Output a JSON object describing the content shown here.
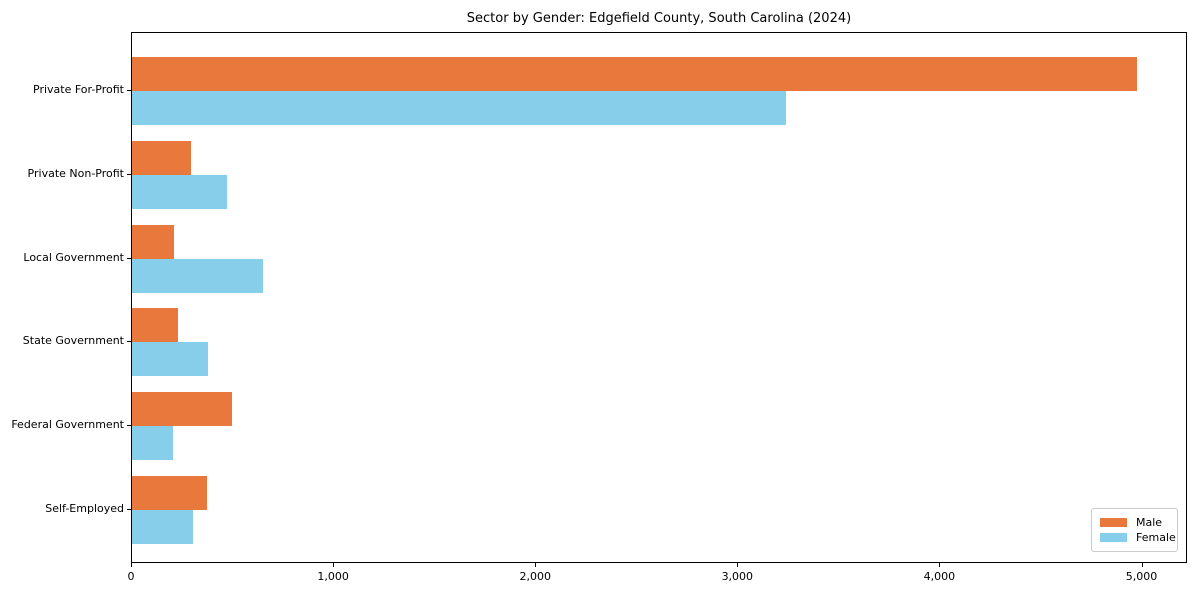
{
  "title": "Sector by Gender: Edgefield County, South Carolina (2024)",
  "chart_data": {
    "type": "bar",
    "orientation": "horizontal",
    "title": "Sector by Gender: Edgefield County, South Carolina (2024)",
    "categories": [
      "Private For-Profit",
      "Private Non-Profit",
      "Local Government",
      "State Government",
      "Federal Government",
      "Self-Employed"
    ],
    "series": [
      {
        "name": "Male",
        "color": "#E8783C",
        "values": [
          4974,
          292,
          209,
          229,
          493,
          371
        ]
      },
      {
        "name": "Female",
        "color": "#87CEEB",
        "values": [
          3234,
          469,
          647,
          376,
          204,
          300
        ]
      }
    ],
    "xlabel": "",
    "ylabel": "",
    "xlim": [
      0,
      5225
    ],
    "x_ticks": [
      0,
      1000,
      2000,
      3000,
      4000,
      5000
    ],
    "x_tick_labels": [
      "0",
      "1,000",
      "2,000",
      "3,000",
      "4,000",
      "5,000"
    ],
    "grid": false,
    "legend_position": "lower right"
  },
  "colors": {
    "male": "#E8783C",
    "female": "#87CEEB",
    "axis": "#000000",
    "legend_border": "#cccccc",
    "background": "#ffffff"
  }
}
